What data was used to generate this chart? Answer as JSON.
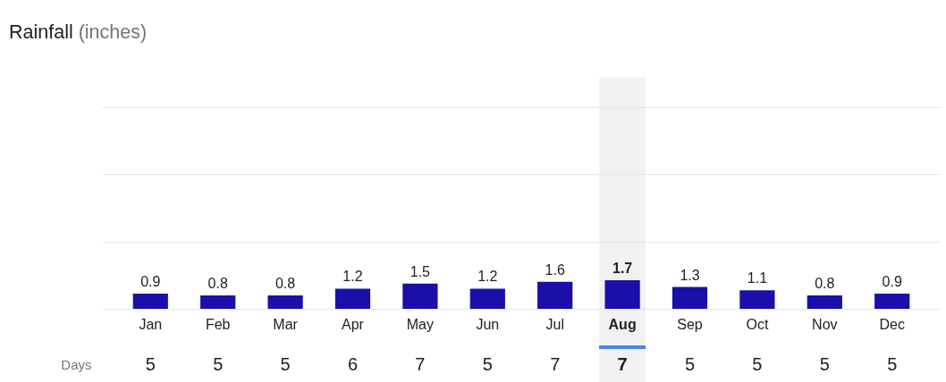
{
  "chart_data": [
    {
      "type": "bar",
      "title": "Rainfall",
      "ylabel": "(inches)",
      "categories": [
        "Jan",
        "Feb",
        "Mar",
        "Apr",
        "May",
        "Jun",
        "Jul",
        "Aug",
        "Sep",
        "Oct",
        "Nov",
        "Dec"
      ],
      "values": [
        0.9,
        0.8,
        0.8,
        1.2,
        1.5,
        1.2,
        1.6,
        1.7,
        1.3,
        1.1,
        0.8,
        0.9
      ],
      "color": "#1a0fa8",
      "ylim": [
        0,
        12
      ],
      "yticks": [
        {
          "value": 0,
          "label": null
        },
        {
          "value": 4,
          "label": null
        },
        {
          "value": 8,
          "label": null
        },
        {
          "value": 12,
          "label": null
        }
      ],
      "grid": "y",
      "tick_labels": "x",
      "data_labels": true,
      "bands": [
        {
          "axis": "x",
          "from": "Aug",
          "to": "Aug",
          "color": "#f1f1f1"
        }
      ]
    },
    {
      "type": "heatmap",
      "categories": [
        null,
        null,
        null,
        null,
        null,
        null,
        null,
        null,
        null,
        null,
        null,
        null
      ],
      "y_categories": [
        "Days"
      ],
      "cells": [
        [
          5,
          5,
          5,
          6,
          7,
          5,
          7,
          7,
          5,
          5,
          5,
          5
        ]
      ],
      "data_labels": true,
      "tick_labels": "y"
    }
  ]
}
